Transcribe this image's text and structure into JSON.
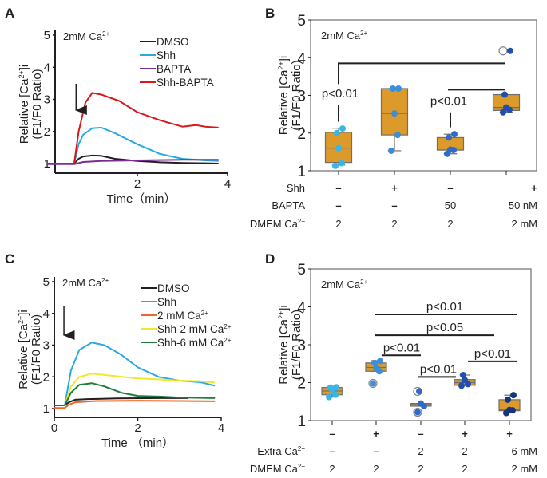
{
  "chart_data": [
    {
      "panel": "A",
      "type": "line",
      "condition_label": "2mM Ca2+",
      "ylabel_line1": "Relative  [Ca2+]i",
      "ylabel_line2": "(F1/F0 Ratio)",
      "xlabel": "Time（min）",
      "xlim": [
        0,
        4
      ],
      "ylim": [
        1,
        5
      ],
      "xticks": [
        "2",
        "4"
      ],
      "yticks": [
        "1",
        "2",
        "3",
        "4",
        "5"
      ],
      "arrow_marker_at_min": 0.2,
      "legend_position": "top-right",
      "series": [
        {
          "name": "DMSO",
          "color": "#231f20",
          "x": [
            0,
            0.6,
            0.7,
            0.8,
            1.0,
            1.2,
            1.5,
            2.0,
            2.5,
            3.0,
            3.5,
            3.8
          ],
          "y": [
            1.0,
            1.0,
            1.15,
            1.22,
            1.25,
            1.24,
            1.15,
            1.08,
            1.04,
            1.02,
            1.01,
            1.0
          ]
        },
        {
          "name": "Shh",
          "color": "#29abe2",
          "x": [
            0,
            0.6,
            0.7,
            0.8,
            1.0,
            1.2,
            1.5,
            2.0,
            2.5,
            3.0,
            3.5,
            3.8
          ],
          "y": [
            1.0,
            1.0,
            1.6,
            1.9,
            2.1,
            2.12,
            1.95,
            1.6,
            1.3,
            1.15,
            1.1,
            1.08
          ]
        },
        {
          "name": "BAPTA",
          "color": "#7b2c91",
          "x": [
            0,
            0.6,
            0.8,
            1.2,
            2.0,
            3.0,
            3.8
          ],
          "y": [
            0.98,
            0.98,
            1.05,
            1.08,
            1.1,
            1.12,
            1.12
          ]
        },
        {
          "name": "Shh-BAPTA",
          "color": "#d7191c",
          "x": [
            0,
            0.6,
            0.7,
            0.85,
            1.0,
            1.2,
            1.6,
            2.0,
            2.5,
            3.0,
            3.3,
            3.5,
            3.8
          ],
          "y": [
            1.0,
            1.0,
            2.0,
            2.9,
            3.2,
            3.15,
            2.95,
            2.6,
            2.35,
            2.15,
            2.2,
            2.15,
            2.12
          ]
        }
      ]
    },
    {
      "panel": "B",
      "type": "box",
      "condition_label": "2mM Ca2+",
      "ylabel_line1": "Relative  [Ca2+]i",
      "ylabel_line2": "(F1/F0 Ratio)",
      "ylim": [
        1,
        5
      ],
      "yticks": [
        "1",
        "2",
        "3",
        "4",
        "5"
      ],
      "box_color": "#dc9a2a",
      "groups": [
        {
          "shh": "–",
          "bapta": "–",
          "dmem": "2",
          "q1": 1.22,
          "median": 1.6,
          "q3": 2.02,
          "whisker_low": 1.15,
          "whisker_high": 2.13,
          "points": [
            1.13,
            1.2,
            1.6,
            2.0,
            2.12
          ],
          "dot_color": "#38b6e8",
          "outliers": []
        },
        {
          "shh": "+",
          "bapta": "–",
          "dmem": "2",
          "q1": 1.95,
          "median": 2.52,
          "q3": 3.18,
          "whisker_low": 1.53,
          "whisker_high": 3.18,
          "points": [
            1.53,
            1.95,
            2.52,
            3.18,
            3.18
          ],
          "dot_color": "#3b8fd8",
          "outliers": []
        },
        {
          "shh": "–",
          "bapta": "50",
          "dmem": "2",
          "q1": 1.55,
          "median": 1.55,
          "q3": 1.88,
          "whisker_low": 1.45,
          "whisker_high": 1.97,
          "points": [
            1.45,
            1.55,
            1.56,
            1.88,
            1.97
          ],
          "dot_color": "#2f6bc6",
          "outliers": []
        },
        {
          "shh": "+",
          "bapta": "50 nM",
          "dmem": "2 mM",
          "q1": 2.6,
          "median": 2.68,
          "q3": 3.02,
          "whisker_low": 2.55,
          "whisker_high": 3.02,
          "points": [
            2.55,
            2.62,
            2.68,
            3.02,
            4.18
          ],
          "dot_color": "#1f4fb0",
          "outliers": [
            4.18
          ]
        }
      ],
      "row_labels": [
        "Shh",
        "BAPTA",
        "DMEM Ca2+"
      ],
      "significance": [
        {
          "from": 0,
          "to": 3,
          "label": "p<0.01",
          "level": 3.85
        },
        {
          "from": 2,
          "to": 3,
          "label": "p<0.01",
          "level": 3.15
        }
      ]
    },
    {
      "panel": "C",
      "type": "line",
      "condition_label": "2mM Ca2+",
      "ylabel_line1": "Relative  [Ca2+]i",
      "ylabel_line2": "(F1/F0 Ratio)",
      "xlabel": "Time  （min）",
      "xlim": [
        0,
        4
      ],
      "ylim": [
        1,
        5
      ],
      "xticks": [
        "0",
        "2",
        "4"
      ],
      "yticks": [
        "1",
        "2",
        "3",
        "4",
        "5"
      ],
      "arrow_marker_at_min": 0.25,
      "legend_position": "top-right",
      "series": [
        {
          "name": "DMSO",
          "color": "#231f20",
          "x": [
            0,
            0.25,
            0.35,
            0.5,
            0.8,
            1.5,
            2.5,
            3.2
          ],
          "y": [
            1.1,
            1.1,
            1.2,
            1.28,
            1.3,
            1.32,
            1.33,
            1.33
          ]
        },
        {
          "name": "Shh",
          "color": "#29abe2",
          "x": [
            0,
            0.25,
            0.4,
            0.6,
            0.9,
            1.2,
            1.6,
            2.0,
            2.5,
            3.0,
            3.5,
            3.85
          ],
          "y": [
            1.1,
            1.1,
            2.2,
            2.85,
            3.08,
            3.0,
            2.7,
            2.3,
            2.0,
            1.88,
            1.83,
            1.72
          ]
        },
        {
          "name": "2 mM Ca2+",
          "color": "#f26522",
          "x": [
            0,
            0.25,
            0.35,
            0.5,
            1.0,
            2.0,
            3.0,
            3.85
          ],
          "y": [
            1.02,
            1.02,
            1.12,
            1.2,
            1.24,
            1.25,
            1.24,
            1.23
          ]
        },
        {
          "name": "Shh-2 mM Ca2+",
          "color": "#f2e82a",
          "x": [
            0,
            0.25,
            0.4,
            0.6,
            0.9,
            1.5,
            2.0,
            2.5,
            3.0,
            3.5,
            3.85
          ],
          "y": [
            1.1,
            1.1,
            1.7,
            2.0,
            2.1,
            2.02,
            1.95,
            1.92,
            1.88,
            1.86,
            1.82
          ]
        },
        {
          "name": "Shh-6 mM Ca2+",
          "color": "#1e7d3c",
          "x": [
            0,
            0.25,
            0.4,
            0.6,
            0.9,
            1.2,
            1.6,
            2.0,
            2.5,
            3.0,
            3.85
          ],
          "y": [
            1.1,
            1.1,
            1.5,
            1.75,
            1.8,
            1.7,
            1.5,
            1.4,
            1.38,
            1.35,
            1.33
          ]
        }
      ]
    },
    {
      "panel": "D",
      "type": "box",
      "condition_label": "2mM Ca2+",
      "ylabel_line1": "Relative  [Ca2+]i",
      "ylabel_line2": "(F1/F0 Ratio)",
      "ylim": [
        1,
        5
      ],
      "yticks": [
        "1",
        "2",
        "3",
        "4",
        "5"
      ],
      "box_color": "#dc9a2a",
      "groups": [
        {
          "shh": "–",
          "extra": "–",
          "dmem": "2",
          "q1": 1.68,
          "median": 1.78,
          "q3": 1.87,
          "whisker_low": 1.62,
          "whisker_high": 1.9,
          "points": [
            1.62,
            1.68,
            1.82,
            1.87,
            1.88
          ],
          "dot_color": "#38b6e8",
          "outliers": []
        },
        {
          "shh": "+",
          "extra": "–",
          "dmem": "2",
          "q1": 2.3,
          "median": 2.4,
          "q3": 2.52,
          "whisker_low": 2.3,
          "whisker_high": 2.58,
          "points": [
            1.98,
            2.3,
            2.38,
            2.52,
            2.57
          ],
          "dot_color": "#3b8fd8",
          "outliers": [
            1.98
          ]
        },
        {
          "shh": "–",
          "extra": "2",
          "dmem": "2",
          "q1": 1.38,
          "median": 1.42,
          "q3": 1.45,
          "whisker_low": 1.38,
          "whisker_high": 1.45,
          "points": [
            1.22,
            1.38,
            1.45,
            1.77
          ],
          "dot_color": "#2f6bc6",
          "outliers": [
            1.22,
            1.77
          ]
        },
        {
          "shh": "+",
          "extra": "2",
          "dmem": "2",
          "q1": 1.93,
          "median": 2.0,
          "q3": 2.08,
          "whisker_low": 1.92,
          "whisker_high": 2.2,
          "points": [
            1.92,
            1.96,
            2.07,
            2.2
          ],
          "dot_color": "#1f4fb0",
          "outliers": []
        },
        {
          "shh": "+",
          "extra": "6 mM",
          "dmem": "2 mM",
          "q1": 1.26,
          "median": 1.28,
          "q3": 1.55,
          "whisker_low": 1.2,
          "whisker_high": 1.67,
          "points": [
            1.2,
            1.27,
            1.28,
            1.55,
            1.67
          ],
          "dot_color": "#16357f",
          "outliers": []
        }
      ],
      "row_labels": [
        "Extra Ca2+",
        "DMEM Ca2+"
      ],
      "significance": [
        {
          "from": 1,
          "to": 4,
          "label": "p<0.01",
          "level": 3.8
        },
        {
          "from": 1,
          "to": 3,
          "label": "p<0.05",
          "level": 3.25
        },
        {
          "from": 1,
          "to": 2,
          "label": "p<0.01",
          "level": 2.72
        },
        {
          "from": 2,
          "to": 3,
          "label": "p<0.01",
          "level": 2.15
        },
        {
          "from": 3,
          "to": 4,
          "label": "p<0.01",
          "level": 2.56
        }
      ]
    }
  ],
  "panel_letters": [
    "A",
    "B",
    "C",
    "D"
  ]
}
